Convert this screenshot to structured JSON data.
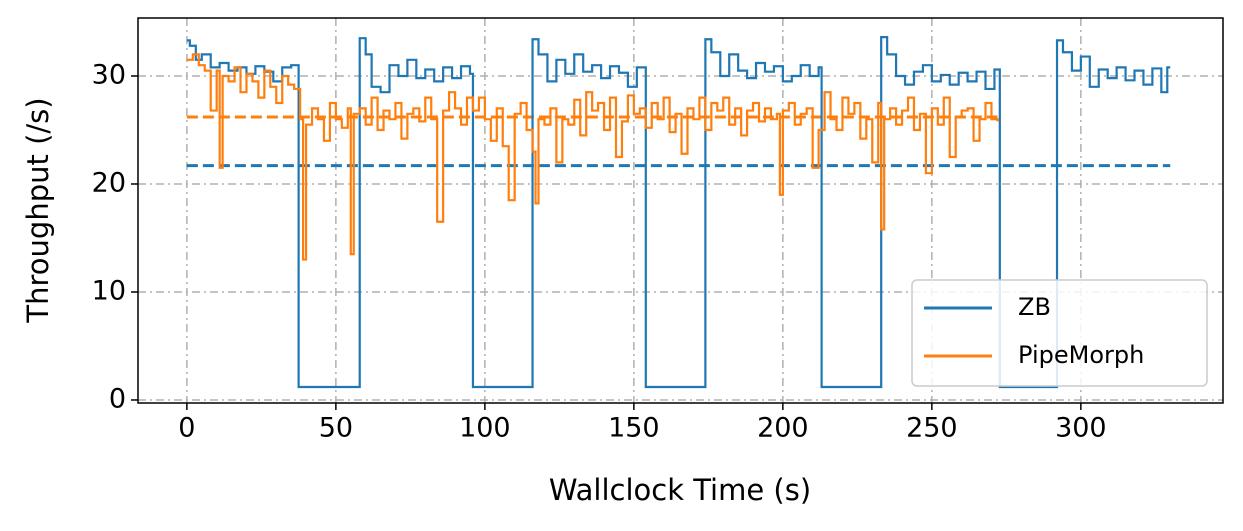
{
  "chart_data": {
    "type": "line",
    "step": true,
    "x_label": "Wallclock Time (s)",
    "y_label": "Throughput (/s)",
    "xlim": [
      -16.4,
      347.7
    ],
    "ylim": [
      -0.28,
      35.37
    ],
    "xticks": [
      0,
      50,
      100,
      150,
      200,
      250,
      300
    ],
    "yticks": [
      0,
      10,
      20,
      30
    ],
    "grid": true,
    "legend": "lower right",
    "series": [
      {
        "name": "ZB",
        "color": "#1f77b4",
        "x": [
          0,
          1,
          3,
          5,
          8,
          11,
          14,
          17,
          20,
          23,
          26,
          29,
          32,
          35,
          37.5,
          58,
          60,
          62,
          65,
          68,
          71,
          74,
          77,
          80,
          83,
          86,
          89,
          92,
          95,
          96,
          116,
          118,
          121,
          124,
          127,
          130,
          133,
          136,
          139,
          142,
          145,
          148,
          151,
          154,
          174,
          176,
          179,
          182,
          185,
          188,
          191,
          194,
          197,
          200,
          203,
          206,
          209,
          212,
          213,
          233,
          235,
          238,
          241,
          244,
          247,
          250,
          253,
          256,
          259,
          262,
          265,
          268,
          271,
          272.8,
          292,
          294,
          297,
          300,
          303,
          306,
          309,
          312,
          315,
          318,
          321,
          324,
          327,
          329,
          330
        ],
        "values": [
          33.3,
          32.8,
          31.5,
          32,
          30.8,
          31.2,
          30.5,
          30.8,
          30.2,
          30.9,
          30.4,
          29.5,
          30.8,
          31,
          1.2,
          33.5,
          32,
          29,
          28.5,
          31,
          30,
          31.5,
          29.8,
          30.6,
          29.5,
          30.8,
          29.8,
          30.9,
          30.2,
          1.2,
          33.4,
          32,
          29.5,
          31.5,
          30.2,
          32,
          30.4,
          31,
          29.8,
          30.9,
          30.3,
          29,
          30.8,
          1.2,
          33.4,
          32.2,
          30,
          32,
          30.5,
          29.8,
          31.2,
          30.4,
          30.9,
          29.5,
          30,
          31,
          30,
          30.8,
          1.2,
          33.6,
          32,
          30,
          29.2,
          30.4,
          31,
          29.5,
          30.1,
          29.2,
          30.3,
          29.5,
          30.4,
          28.8,
          30.6,
          1.2,
          33.3,
          32.2,
          30.5,
          31.8,
          29,
          30.6,
          29.8,
          30.8,
          29.6,
          30.5,
          29.2,
          30.7,
          28.5,
          30.8,
          30.8
        ]
      },
      {
        "name": "PipeMorph",
        "color": "#ff7f0e",
        "x": [
          0,
          2,
          4,
          6,
          8,
          10,
          11,
          12,
          14,
          16,
          18,
          20,
          22,
          24,
          26,
          28,
          30,
          32,
          34,
          36,
          38,
          39,
          40,
          42,
          44,
          46,
          48,
          50,
          52,
          54,
          55,
          56,
          58,
          60,
          62,
          64,
          66,
          68,
          70,
          72,
          74,
          76,
          78,
          80,
          82,
          84,
          86,
          88,
          90,
          92,
          94,
          96,
          98,
          100,
          102,
          104,
          106,
          108,
          110,
          112,
          114,
          116,
          117,
          118,
          120,
          122,
          124,
          126,
          128,
          130,
          132,
          134,
          136,
          138,
          140,
          142,
          144,
          146,
          148,
          150,
          152,
          154,
          156,
          158,
          160,
          162,
          164,
          166,
          168,
          170,
          172,
          174,
          176,
          178,
          180,
          182,
          184,
          186,
          188,
          190,
          192,
          194,
          196,
          198,
          199,
          200,
          202,
          204,
          206,
          208,
          210,
          212,
          214,
          216,
          218,
          220,
          222,
          224,
          226,
          228,
          230,
          232,
          233,
          234,
          236,
          238,
          240,
          242,
          244,
          246,
          248,
          250,
          252,
          254,
          256,
          258,
          260,
          262,
          264,
          266,
          268,
          270,
          272
        ],
        "values": [
          31.5,
          32,
          31,
          30.5,
          26.8,
          30.5,
          21.5,
          30,
          29.5,
          30.8,
          28.5,
          30.2,
          29.5,
          28,
          30.5,
          29,
          27.5,
          30,
          29.2,
          28.8,
          26,
          13,
          25.5,
          27,
          26,
          24,
          27.5,
          26,
          25.2,
          27,
          13.5,
          26.5,
          27,
          25.5,
          28,
          25,
          26.8,
          26,
          27.5,
          24.2,
          26.5,
          27,
          25.8,
          28,
          26,
          16.5,
          26.8,
          28.5,
          27,
          25.5,
          28,
          26.8,
          28,
          26,
          24,
          27,
          23.5,
          18.5,
          26.5,
          27.5,
          25,
          23,
          18.2,
          26,
          25.5,
          27,
          22,
          26,
          25.5,
          27.8,
          24.5,
          28.5,
          26.8,
          27.5,
          25,
          28,
          22.5,
          25.8,
          28.2,
          26.5,
          27,
          25.2,
          27.5,
          26,
          28,
          24.8,
          26.5,
          22.8,
          27,
          26,
          28,
          25,
          27.5,
          26.8,
          28,
          25.5,
          27,
          24.5,
          26.8,
          27.5,
          25.8,
          27,
          26,
          26.5,
          19,
          26.8,
          27.5,
          25.5,
          26.5,
          27,
          21.5,
          25,
          28.5,
          26,
          25,
          28,
          26.5,
          27.5,
          24.2,
          26,
          22,
          27.5,
          15.8,
          26,
          27,
          25.5,
          26.8,
          28,
          25,
          26.5,
          21,
          27,
          25.5,
          28,
          22.5,
          26.2,
          26.8,
          27,
          24,
          26,
          27.5,
          26,
          25.8
        ]
      }
    ],
    "hlines": [
      {
        "y": 21.7,
        "x": [
          0,
          330
        ],
        "color": "#1f77b4"
      },
      {
        "y": 26.2,
        "x": [
          0,
          272
        ],
        "color": "#ff7f0e"
      }
    ]
  }
}
